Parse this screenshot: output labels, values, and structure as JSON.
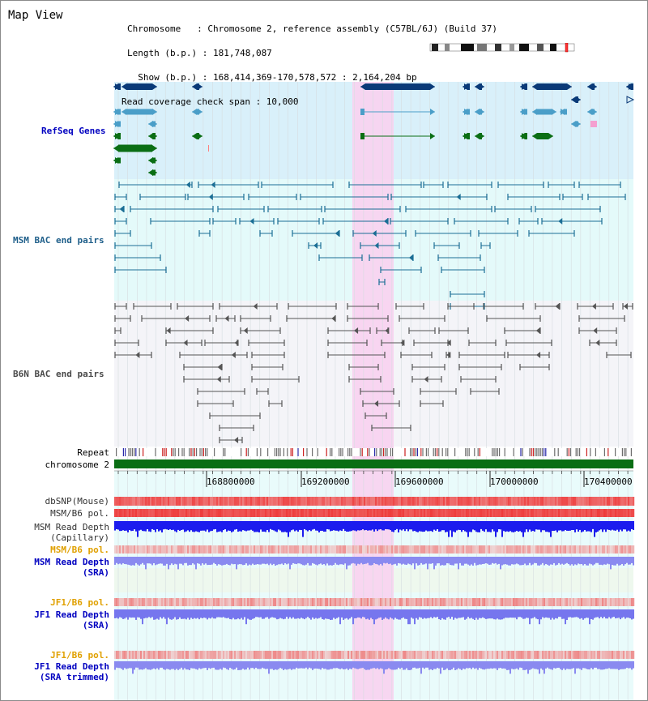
{
  "title": "Map View",
  "info": {
    "chromosome": "Chromosome   : Chromosome 2, reference assembly (C57BL/6J) (Build 37)",
    "length": "Length (b.p.) : 181,748,087",
    "show": "  Show (b.p.) : 168,414,369-170,578,572 : 2,164,204 bp",
    "coverage": "Read coverage check span : 10,000"
  },
  "tracks": {
    "refseq": "RefSeq Genes",
    "msm_bac": "MSM BAC end pairs",
    "b6n_bac": "B6N BAC end pairs",
    "repeat": "Repeat",
    "chromosome": "chromosome 2",
    "dbsnp": "dbSNP(Mouse)",
    "msm_b6_pol": "MSM/B6 pol.",
    "msm_depth_cap_1": "MSM Read Depth",
    "msm_depth_cap_2": "(Capillary)",
    "msm_b6_pol_sra": "MSM/B6 pol.",
    "msm_depth_sra_1": "MSM Read Depth",
    "msm_depth_sra_2": "(SRA)",
    "jf1_pol_1": "JF1/B6 pol.",
    "jf1_depth_1": "JF1 Read Depth",
    "jf1_depth_1b": "(SRA)",
    "jf1_pol_2": "JF1/B6 pol.",
    "jf1_depth_2": "JF1 Read Depth",
    "jf1_depth_2b": "(SRA trimmed)"
  },
  "axis": {
    "ticks": [
      "168800000",
      "169200000",
      "169600000",
      "170000000",
      "170400000"
    ]
  },
  "colors": {
    "refseq_bg": "#d9f0fa",
    "msm_bg": "#e4fafa",
    "b6n_bg": "#f4f4f8",
    "highlight": "#f8d2f0",
    "gene_dark": "#0a3a78",
    "gene_light": "#4a9ec8",
    "gene_green": "#0a6e14",
    "msm_line": "#1b6e95",
    "b6n_line": "#555555",
    "chrom_bar": "#0a6e14",
    "snp_red": "#ee3030",
    "depth_blue": "#1c1cee",
    "depth_light": "#8a8af0"
  }
}
